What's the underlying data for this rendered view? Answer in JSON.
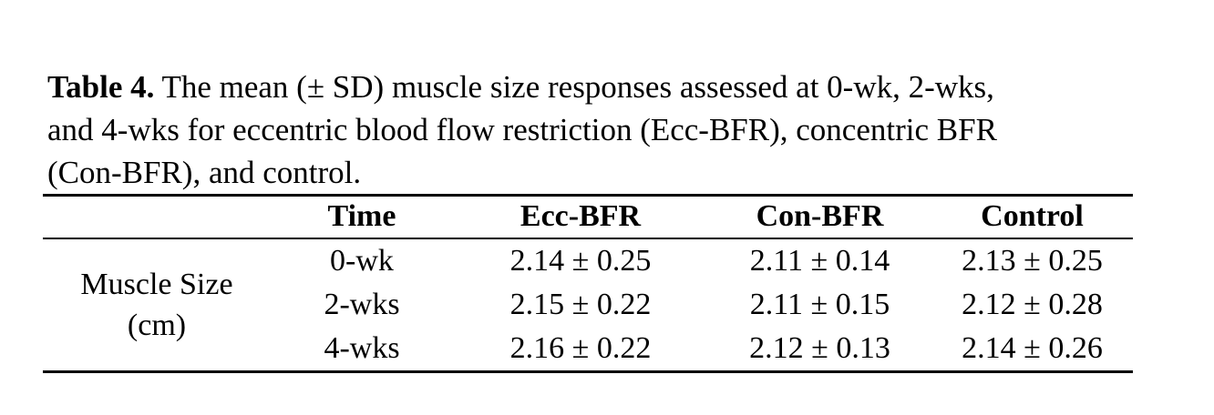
{
  "caption": {
    "label": "Table 4.",
    "line1": " The mean (± SD) muscle size responses assessed at 0-wk, 2-wks,",
    "line2": "and 4-wks for eccentric blood flow restriction (Ecc-BFR), concentric BFR",
    "line3": "(Con-BFR), and control."
  },
  "table": {
    "columns": [
      "",
      "Time",
      "Ecc-BFR",
      "Con-BFR",
      "Control"
    ],
    "row_group": {
      "label": "Muscle Size",
      "unit": "(cm)"
    },
    "rows": [
      {
        "time": "0-wk",
        "ecc_bfr": "2.14 ± 0.25",
        "con_bfr": "2.11 ± 0.14",
        "control": "2.13 ± 0.25"
      },
      {
        "time": "2-wks",
        "ecc_bfr": "2.15 ± 0.22",
        "con_bfr": "2.11 ± 0.15",
        "control": "2.12 ± 0.28"
      },
      {
        "time": "4-wks",
        "ecc_bfr": "2.16 ± 0.22",
        "con_bfr": "2.12 ± 0.13",
        "control": "2.14 ± 0.26"
      }
    ]
  },
  "chart_data": {
    "type": "table",
    "title": "Table 4. The mean (± SD) muscle size responses assessed at 0-wk, 2-wks, and 4-wks for eccentric blood flow restriction (Ecc-BFR), concentric BFR (Con-BFR), and control.",
    "measure": "Muscle Size (cm)",
    "categories": [
      "0-wk",
      "2-wks",
      "4-wks"
    ],
    "series": [
      {
        "name": "Ecc-BFR",
        "mean": [
          2.14,
          2.15,
          2.16
        ],
        "sd": [
          0.25,
          0.22,
          0.22
        ]
      },
      {
        "name": "Con-BFR",
        "mean": [
          2.11,
          2.11,
          2.12
        ],
        "sd": [
          0.14,
          0.15,
          0.13
        ]
      },
      {
        "name": "Control",
        "mean": [
          2.13,
          2.12,
          2.14
        ],
        "sd": [
          0.25,
          0.28,
          0.26
        ]
      }
    ]
  },
  "colors": {
    "text": "#000000",
    "background": "#ffffff",
    "rule": "#000000"
  }
}
